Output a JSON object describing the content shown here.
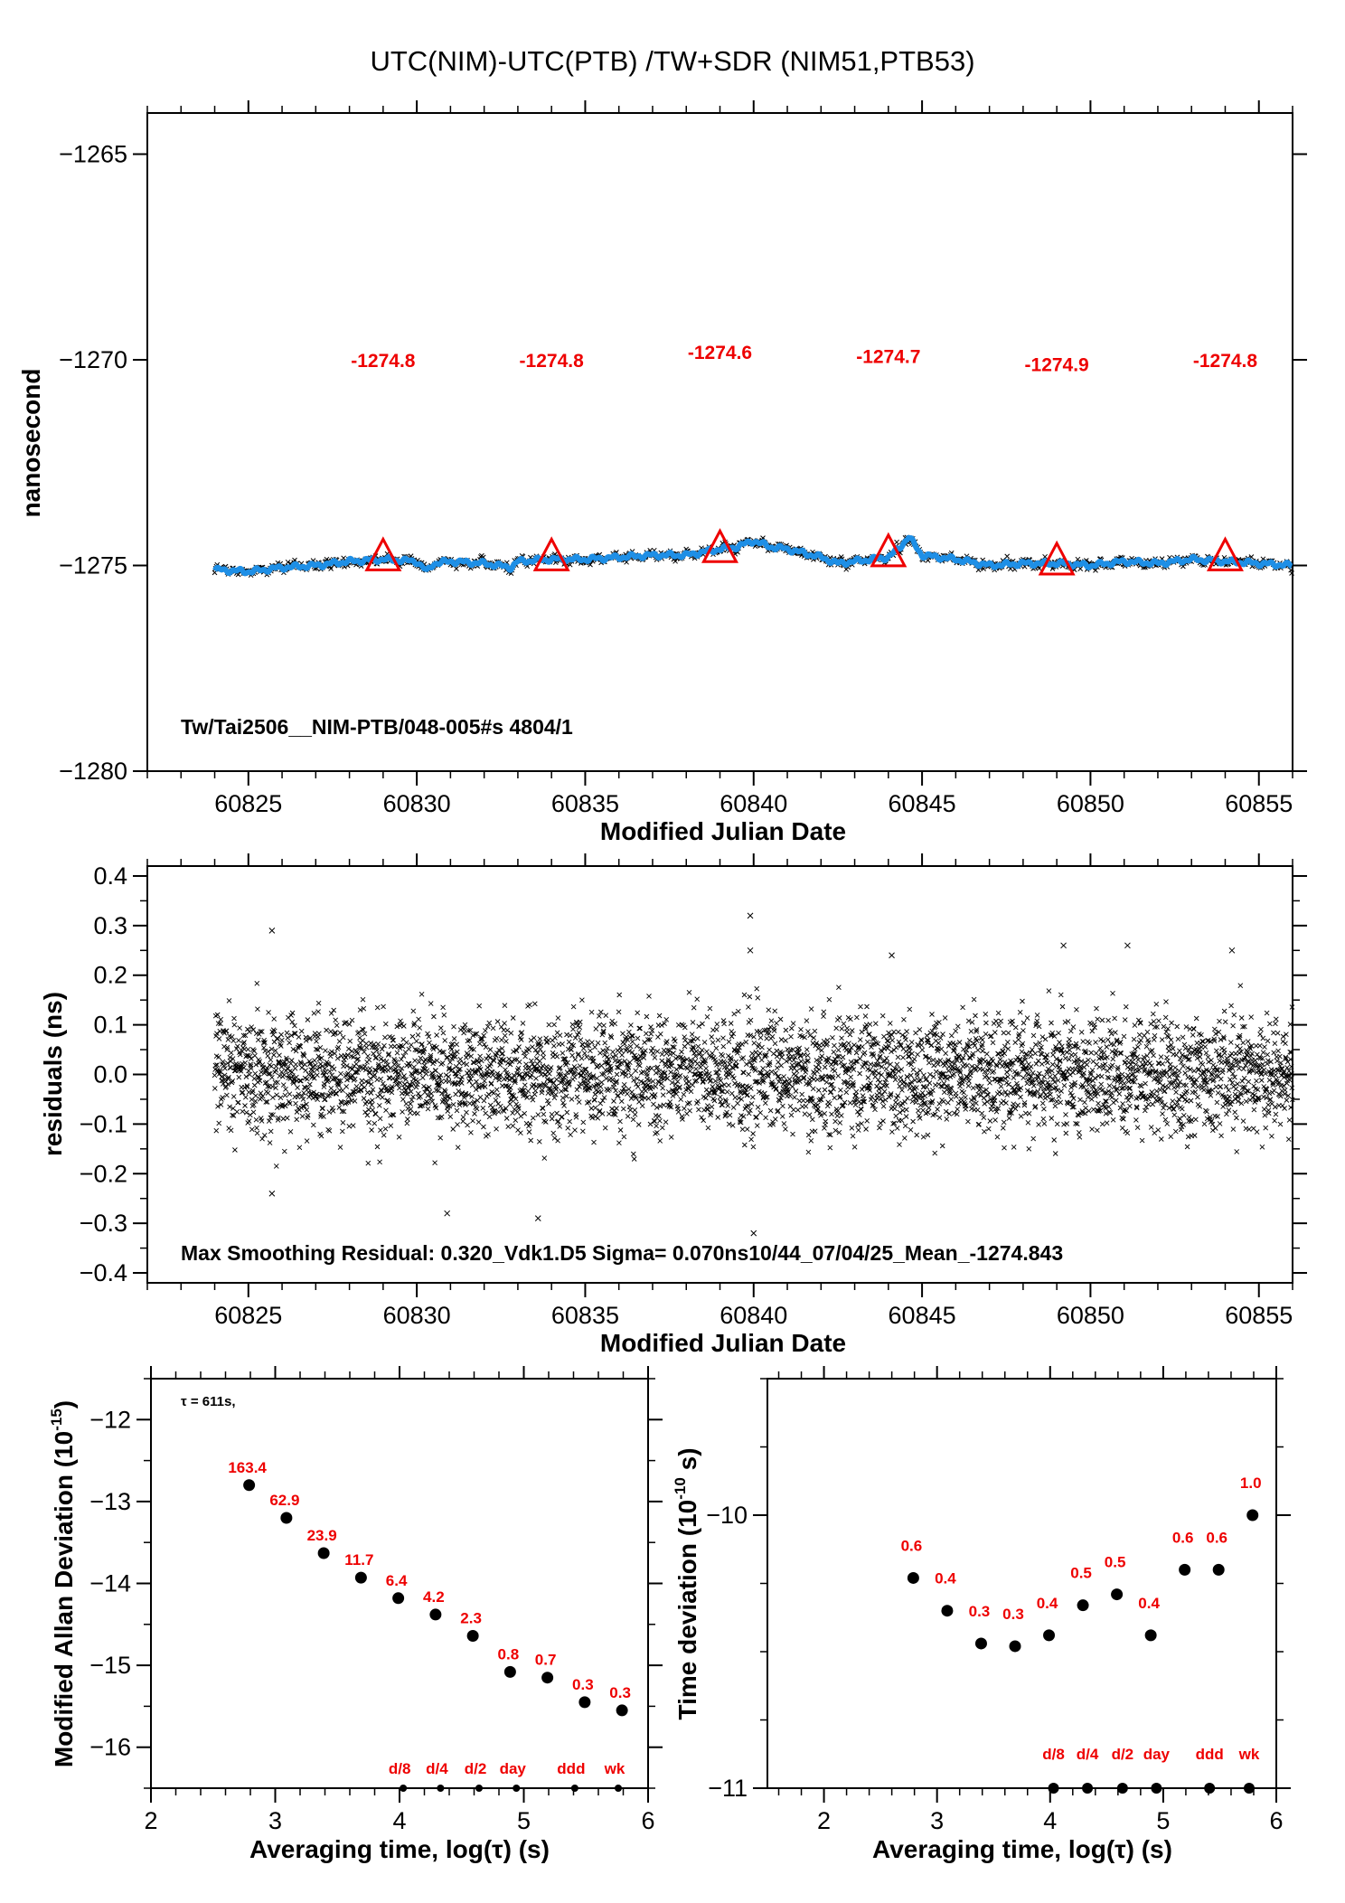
{
  "title": "UTC(NIM)-UTC(PTB)  /TW+SDR  (NIM51,PTB53)",
  "colors": {
    "series": "#1e8fe6",
    "marker": "#ee0000",
    "cross": "#000000"
  },
  "chart_data": [
    {
      "type": "line",
      "name": "time-series",
      "xlabel": "Modified Julian Date",
      "ylabel": "nanosecond",
      "xlim": [
        60822,
        60856
      ],
      "ylim": [
        -1280,
        -1264
      ],
      "xticks": [
        60825,
        60830,
        60835,
        60840,
        60845,
        60850,
        60855
      ],
      "yticks": [
        -1265,
        -1270,
        -1275,
        -1280
      ],
      "note": "Tw/Tai2506__NIM-PTB/048-005#s  4804/1",
      "series_trend": {
        "x": [
          60824,
          60825,
          60826,
          60827,
          60828,
          60829,
          60830,
          60830.3,
          60830.5,
          60831,
          60832,
          60832.8,
          60833,
          60834,
          60835,
          60836,
          60837,
          60838,
          60839,
          60839.5,
          60840,
          60840.5,
          60841,
          60841.5,
          60842,
          60842.5,
          60843,
          60843.5,
          60844,
          60844.3,
          60844.6,
          60845,
          60846,
          60847,
          60848,
          60849,
          60850,
          60851,
          60852,
          60853,
          60854,
          60855,
          60856
        ],
        "y": [
          -1275.1,
          -1275.15,
          -1275.05,
          -1275.0,
          -1274.9,
          -1274.85,
          -1274.9,
          -1275.15,
          -1274.95,
          -1274.9,
          -1274.95,
          -1275.05,
          -1274.9,
          -1274.85,
          -1274.85,
          -1274.8,
          -1274.75,
          -1274.75,
          -1274.6,
          -1274.55,
          -1274.4,
          -1274.55,
          -1274.6,
          -1274.7,
          -1274.8,
          -1274.95,
          -1274.9,
          -1274.85,
          -1274.8,
          -1274.6,
          -1274.3,
          -1274.75,
          -1274.85,
          -1275.0,
          -1274.95,
          -1274.95,
          -1275.0,
          -1274.9,
          -1274.95,
          -1274.85,
          -1274.9,
          -1274.95,
          -1275.0
        ]
      },
      "markers": {
        "x": [
          60829,
          60834,
          60839,
          60844,
          60849,
          60854
        ],
        "y": [
          -1274.8,
          -1274.8,
          -1274.6,
          -1274.7,
          -1274.9,
          -1274.8
        ],
        "labels": [
          "-1274.8",
          "-1274.8",
          "-1274.6",
          "-1274.7",
          "-1274.9",
          "-1274.8"
        ],
        "label_y": [
          -1270.0,
          -1270.0,
          -1269.8,
          -1269.9,
          -1270.1,
          -1270.0
        ]
      }
    },
    {
      "type": "scatter",
      "name": "residuals",
      "xlabel": "Modified Julian Date",
      "ylabel": "residuals (ns)",
      "xlim": [
        60822,
        60856
      ],
      "ylim": [
        -0.42,
        0.42
      ],
      "xticks": [
        60825,
        60830,
        60835,
        60840,
        60845,
        60850,
        60855
      ],
      "yticks": [
        0.4,
        0.3,
        0.2,
        0.1,
        0.0,
        -0.1,
        -0.2,
        -0.3,
        -0.4
      ],
      "ytick_labels": [
        "0.4",
        "0.3",
        "0.2",
        "0.1",
        "0.0",
        "−0.1",
        "−0.2",
        "−0.3",
        "−0.4"
      ],
      "sigma_ns": 0.07,
      "max_residual_ns": 0.32,
      "outliers": {
        "x": [
          60825.7,
          60839.9,
          60840.0,
          60833.6,
          60830.9,
          60839.9,
          60844.1,
          60849.2,
          60854.2,
          60851.1,
          60825.7
        ],
        "y": [
          0.29,
          0.32,
          -0.32,
          -0.29,
          -0.28,
          0.25,
          0.24,
          0.26,
          0.25,
          0.26,
          -0.24
        ]
      },
      "note": "Max Smoothing Residual: 0.320_Vdk1.D5  Sigma= 0.070ns10/44_07/04/25_Mean_-1274.843"
    },
    {
      "type": "scatter",
      "name": "modified-allan-deviation",
      "xlabel": "Averaging time, log(τ) (s)",
      "ylabel": "Modified Allan Deviation (10",
      "ylabel_sup": "-15",
      "ylabel_tail": ")",
      "xlim": [
        2,
        6
      ],
      "ylim": [
        -16.5,
        -11.5
      ],
      "xticks": [
        2,
        3,
        4,
        5,
        6
      ],
      "yticks": [
        -12,
        -13,
        -14,
        -15,
        -16
      ],
      "tau_note": "τ = 611s,",
      "x": [
        2.79,
        3.09,
        3.39,
        3.69,
        3.99,
        4.29,
        4.59,
        4.89,
        5.19,
        5.49,
        5.79
      ],
      "y": [
        -12.8,
        -13.2,
        -13.63,
        -13.93,
        -14.18,
        -14.38,
        -14.64,
        -15.08,
        -15.15,
        -15.45,
        -15.55
      ],
      "labels": [
        "163.4",
        "62.9",
        "23.9",
        "11.7",
        "6.4",
        "4.2",
        "2.3",
        "0.8",
        "0.7",
        "0.3",
        "0.3"
      ],
      "period_markers": {
        "x": [
          4.03,
          4.33,
          4.64,
          4.94,
          5.41,
          5.76
        ],
        "labels": [
          "d/8",
          "d/4",
          "d/2",
          "day",
          "ddd",
          "wk"
        ]
      }
    },
    {
      "type": "scatter",
      "name": "time-deviation",
      "xlabel": "Averaging time, log(τ) (s)",
      "ylabel": "Time deviation (10",
      "ylabel_sup": "-10",
      "ylabel_tail": " s)",
      "xlim": [
        1.5,
        6.0
      ],
      "ylim": [
        -11,
        -9.5
      ],
      "xticks": [
        2,
        3,
        4,
        5,
        6
      ],
      "yticks": [
        -10,
        -11
      ],
      "x": [
        2.79,
        3.09,
        3.39,
        3.69,
        3.99,
        4.29,
        4.59,
        4.89,
        5.19,
        5.49,
        5.79
      ],
      "y": [
        -10.23,
        -10.35,
        -10.47,
        -10.48,
        -10.44,
        -10.33,
        -10.29,
        -10.44,
        -10.2,
        -10.2,
        -10.0
      ],
      "labels": [
        "0.6",
        "0.4",
        "0.3",
        "0.3",
        "0.4",
        "0.5",
        "0.5",
        "0.4",
        "0.6",
        "0.6",
        "1.0"
      ],
      "period_markers": {
        "x": [
          4.03,
          4.33,
          4.64,
          4.94,
          5.41,
          5.76
        ],
        "labels": [
          "d/8",
          "d/4",
          "d/2",
          "day",
          "ddd",
          "wk"
        ]
      }
    }
  ]
}
